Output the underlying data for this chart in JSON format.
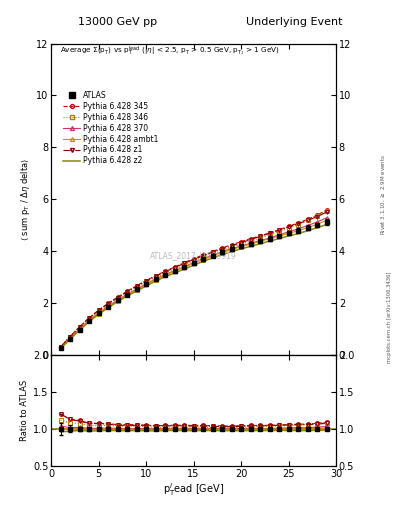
{
  "title_left": "13000 GeV pp",
  "title_right": "Underlying Event",
  "annotation": "ATLAS_2017_I1509919",
  "xlabel": "p$_{\\rm T}^{l}$ead [GeV]",
  "ylabel_main": "$\\langle$ sum p$_{\\rm T}$ / $\\Delta\\eta$ delta$\\rangle$",
  "ylabel_ratio": "Ratio to ATLAS",
  "inner_title": "Average $\\Sigma$(p$_{\\rm T}$) vs p$_{\\rm T}^{\\rm lead}$ ($|\\eta|$ < 2.5, p$_{\\rm T}$ > 0.5 GeV, p$_{{\\rm T}_1}$ > 1 GeV)",
  "right_label": "Rivet 3.1.10, $\\geq$ 2.9M events",
  "side_label": "mcplots.cern.ch [arXiv:1306.3436]",
  "xlim": [
    0,
    30
  ],
  "ylim_main": [
    0,
    12
  ],
  "ylim_ratio": [
    0.5,
    2.0
  ],
  "yticks_main": [
    0,
    2,
    4,
    6,
    8,
    10,
    12
  ],
  "yticks_ratio": [
    0.5,
    1.0,
    1.5,
    2.0
  ],
  "atlas_x": [
    1.0,
    2.0,
    3.0,
    4.0,
    5.0,
    6.0,
    7.0,
    8.0,
    9.0,
    10.0,
    11.0,
    12.0,
    13.0,
    14.0,
    15.0,
    16.0,
    17.0,
    18.0,
    19.0,
    20.0,
    21.0,
    22.0,
    23.0,
    24.0,
    25.0,
    26.0,
    27.0,
    28.0,
    29.0
  ],
  "atlas_y": [
    0.25,
    0.62,
    0.97,
    1.32,
    1.6,
    1.85,
    2.1,
    2.32,
    2.52,
    2.72,
    2.92,
    3.08,
    3.22,
    3.38,
    3.54,
    3.68,
    3.82,
    3.96,
    4.08,
    4.18,
    4.28,
    4.38,
    4.48,
    4.58,
    4.68,
    4.78,
    4.9,
    5.0,
    5.12
  ],
  "atlas_yerr": [
    0.02,
    0.03,
    0.03,
    0.03,
    0.03,
    0.04,
    0.04,
    0.04,
    0.05,
    0.05,
    0.05,
    0.05,
    0.05,
    0.06,
    0.06,
    0.06,
    0.06,
    0.07,
    0.07,
    0.07,
    0.07,
    0.07,
    0.08,
    0.08,
    0.08,
    0.09,
    0.09,
    0.09,
    0.1
  ],
  "py345_y": [
    0.3,
    0.7,
    1.08,
    1.42,
    1.72,
    1.98,
    2.22,
    2.45,
    2.66,
    2.86,
    3.05,
    3.22,
    3.38,
    3.55,
    3.7,
    3.85,
    3.98,
    4.12,
    4.24,
    4.36,
    4.48,
    4.58,
    4.7,
    4.82,
    4.95,
    5.08,
    5.22,
    5.38,
    5.58
  ],
  "py346_y": [
    0.28,
    0.67,
    1.04,
    1.38,
    1.67,
    1.94,
    2.18,
    2.4,
    2.6,
    2.8,
    2.98,
    3.15,
    3.3,
    3.46,
    3.62,
    3.76,
    3.88,
    4.02,
    4.14,
    4.26,
    4.38,
    4.5,
    4.62,
    4.74,
    4.88,
    5.02,
    5.18,
    5.35,
    5.55
  ],
  "py370_y": [
    0.26,
    0.63,
    0.99,
    1.33,
    1.61,
    1.87,
    2.11,
    2.33,
    2.53,
    2.73,
    2.92,
    3.09,
    3.24,
    3.39,
    3.55,
    3.7,
    3.83,
    3.97,
    4.09,
    4.19,
    4.3,
    4.4,
    4.5,
    4.62,
    4.74,
    4.85,
    4.98,
    5.12,
    5.28
  ],
  "pyambt1_y": [
    0.25,
    0.62,
    0.97,
    1.31,
    1.59,
    1.85,
    2.09,
    2.31,
    2.51,
    2.71,
    2.9,
    3.07,
    3.22,
    3.37,
    3.53,
    3.67,
    3.81,
    3.94,
    4.06,
    4.16,
    4.27,
    4.37,
    4.47,
    4.57,
    4.68,
    4.78,
    4.9,
    5.03,
    5.18
  ],
  "pyz1_y": [
    0.3,
    0.7,
    1.07,
    1.42,
    1.71,
    1.97,
    2.2,
    2.43,
    2.64,
    2.84,
    3.03,
    3.2,
    3.36,
    3.52,
    3.67,
    3.82,
    3.95,
    4.08,
    4.2,
    4.32,
    4.44,
    4.56,
    4.68,
    4.8,
    4.93,
    5.05,
    5.18,
    5.32,
    5.5
  ],
  "pyz2_y": [
    0.24,
    0.6,
    0.95,
    1.28,
    1.56,
    1.81,
    2.05,
    2.26,
    2.46,
    2.65,
    2.84,
    3.01,
    3.15,
    3.3,
    3.45,
    3.6,
    3.73,
    3.86,
    3.98,
    4.08,
    4.18,
    4.28,
    4.38,
    4.48,
    4.58,
    4.67,
    4.78,
    4.9,
    5.02
  ],
  "color_atlas": "#000000",
  "color_py345": "#cc0000",
  "color_py346": "#bb7700",
  "color_py370": "#cc3366",
  "color_pyambt1": "#dd8800",
  "color_pyz1": "#880000",
  "color_pyz2": "#888800",
  "bg_color": "#ffffff"
}
